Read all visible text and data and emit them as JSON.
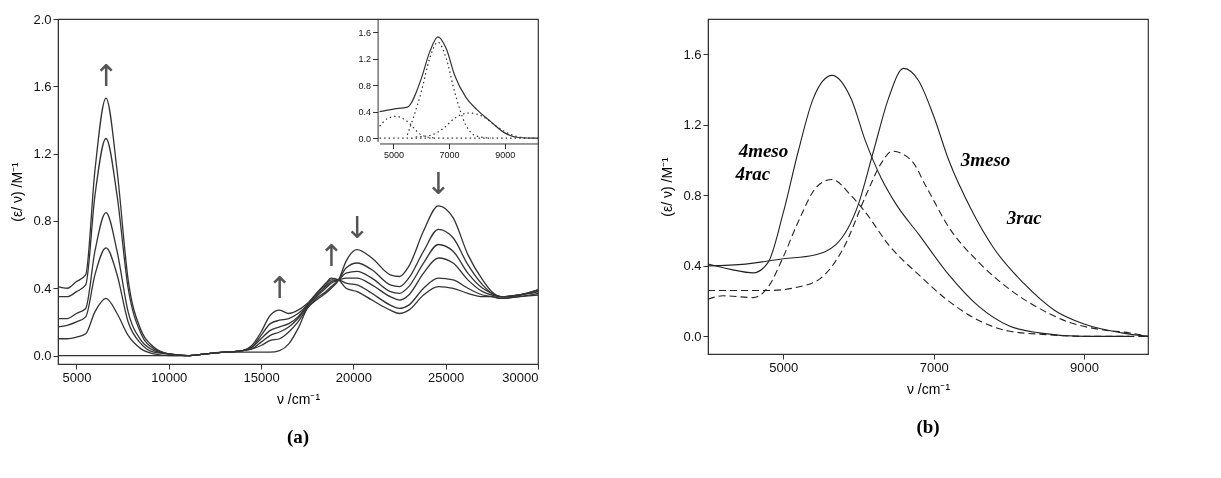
{
  "chart_data": [
    {
      "type": "line",
      "title": "(a)",
      "xlabel": "ν /cm⁻¹",
      "ylabel": "(ε/ ν)  /M⁻¹",
      "x": [
        4000,
        4500,
        5000,
        5500,
        6000,
        6600,
        7200,
        7800,
        8500,
        9200,
        10000,
        11000,
        12000,
        13000,
        14000,
        14500,
        15000,
        15500,
        16000,
        16500,
        17000,
        17500,
        18000,
        18500,
        18800,
        19200,
        19600,
        20200,
        21000,
        22000,
        22500,
        23000,
        23800,
        24600,
        25400,
        26200,
        27000,
        27500,
        28000,
        29000,
        30000
      ],
      "series": [
        {
          "color": "#333333",
          "values": [
            0.41,
            0.4,
            0.44,
            0.48,
            1.1,
            1.53,
            1.1,
            0.45,
            0.15,
            0.05,
            0.01,
            0.0,
            0.01,
            0.02,
            0.03,
            0.06,
            0.14,
            0.24,
            0.27,
            0.25,
            0.27,
            0.31,
            0.37,
            0.43,
            0.46,
            0.45,
            0.4,
            0.38,
            0.33,
            0.27,
            0.25,
            0.27,
            0.36,
            0.41,
            0.4,
            0.37,
            0.35,
            0.35,
            0.34,
            0.35,
            0.36
          ]
        },
        {
          "color": "#333333",
          "values": [
            0.35,
            0.35,
            0.38,
            0.42,
            0.95,
            1.29,
            0.95,
            0.4,
            0.13,
            0.04,
            0.01,
            0.0,
            0.01,
            0.02,
            0.03,
            0.05,
            0.12,
            0.19,
            0.21,
            0.22,
            0.25,
            0.3,
            0.37,
            0.42,
            0.45,
            0.45,
            0.43,
            0.42,
            0.37,
            0.3,
            0.28,
            0.3,
            0.4,
            0.46,
            0.45,
            0.4,
            0.36,
            0.35,
            0.34,
            0.35,
            0.37
          ]
        },
        {
          "color": "#333333",
          "values": [
            0.22,
            0.22,
            0.25,
            0.28,
            0.62,
            0.85,
            0.62,
            0.26,
            0.09,
            0.03,
            0.01,
            0.0,
            0.01,
            0.02,
            0.03,
            0.05,
            0.1,
            0.15,
            0.17,
            0.19,
            0.23,
            0.3,
            0.36,
            0.41,
            0.44,
            0.45,
            0.46,
            0.46,
            0.42,
            0.35,
            0.33,
            0.36,
            0.49,
            0.58,
            0.55,
            0.45,
            0.38,
            0.36,
            0.35,
            0.36,
            0.38
          ]
        },
        {
          "color": "#333333",
          "values": [
            0.17,
            0.18,
            0.2,
            0.23,
            0.48,
            0.64,
            0.48,
            0.2,
            0.07,
            0.02,
            0.01,
            0.0,
            0.01,
            0.02,
            0.03,
            0.04,
            0.08,
            0.12,
            0.14,
            0.17,
            0.22,
            0.29,
            0.35,
            0.4,
            0.43,
            0.45,
            0.49,
            0.5,
            0.46,
            0.38,
            0.37,
            0.41,
            0.55,
            0.66,
            0.62,
            0.49,
            0.4,
            0.37,
            0.35,
            0.36,
            0.38
          ]
        },
        {
          "color": "#333333",
          "values": [
            0.1,
            0.1,
            0.11,
            0.13,
            0.26,
            0.34,
            0.25,
            0.12,
            0.04,
            0.01,
            0.0,
            0.0,
            0.01,
            0.02,
            0.03,
            0.04,
            0.06,
            0.09,
            0.1,
            0.14,
            0.2,
            0.28,
            0.34,
            0.38,
            0.41,
            0.45,
            0.52,
            0.55,
            0.51,
            0.42,
            0.41,
            0.46,
            0.62,
            0.75,
            0.7,
            0.54,
            0.42,
            0.37,
            0.35,
            0.36,
            0.39
          ]
        },
        {
          "color": "#333333",
          "values": [
            0.0,
            0.0,
            0.0,
            0.0,
            0.0,
            0.0,
            0.0,
            0.0,
            0.0,
            0.0,
            0.0,
            0.0,
            0.01,
            0.02,
            0.02,
            0.02,
            0.02,
            0.02,
            0.03,
            0.07,
            0.16,
            0.28,
            0.33,
            0.37,
            0.4,
            0.45,
            0.56,
            0.63,
            0.58,
            0.48,
            0.47,
            0.53,
            0.74,
            0.89,
            0.82,
            0.6,
            0.45,
            0.38,
            0.35,
            0.36,
            0.39
          ]
        }
      ],
      "xlim": [
        4000,
        30000
      ],
      "ylim": [
        -0.05,
        2.0
      ],
      "xticks": [
        5000,
        10000,
        15000,
        20000,
        25000,
        30000
      ],
      "yticks": [
        {
          "value": 0,
          "label": "0.0"
        },
        {
          "value": 0.4,
          "label": "0.4"
        },
        {
          "value": 0.8,
          "label": "0.8"
        },
        {
          "value": 1.2,
          "label": "1.2"
        },
        {
          "value": 1.6,
          "label": "1.6"
        },
        {
          "value": 2.0,
          "label": "2.0"
        }
      ],
      "grid": false,
      "annotations": [
        {
          "text": "↑",
          "x": 6600,
          "y": 1.53
        },
        {
          "text": "↑",
          "x": 16000,
          "y": 0.27
        },
        {
          "text": "↑",
          "x": 18800,
          "y": 0.46
        },
        {
          "text": "↓",
          "x": 20200,
          "y": 0.63
        },
        {
          "text": "↓",
          "x": 24600,
          "y": 0.89
        }
      ]
    },
    {
      "type": "line",
      "series": [
        {
          "color": "#333333",
          "line_style": "solid",
          "x": [
            4500,
            5000,
            5500,
            6000,
            6300,
            6600,
            6900,
            7200,
            7600,
            8000,
            8500,
            9000,
            9500,
            10000,
            10200
          ],
          "values": [
            0.4,
            0.44,
            0.47,
            0.9,
            1.3,
            1.53,
            1.35,
            0.95,
            0.62,
            0.43,
            0.25,
            0.08,
            0.01,
            0.0,
            0.0
          ]
        },
        {
          "color": "#333333",
          "line_style": "dotted",
          "x": [
            4500,
            4800,
            5100,
            5500,
            6000,
            6500
          ],
          "values": [
            0.18,
            0.3,
            0.33,
            0.25,
            0.05,
            0.0
          ]
        },
        {
          "color": "#333333",
          "line_style": "dotted",
          "x": [
            5500,
            6000,
            6300,
            6600,
            6900,
            7200,
            7600,
            8000,
            8500
          ],
          "values": [
            0.05,
            0.7,
            1.2,
            1.45,
            1.2,
            0.7,
            0.2,
            0.03,
            0.0
          ]
        },
        {
          "color": "#333333",
          "line_style": "dotted",
          "x": [
            5800,
            6300,
            6800,
            7200,
            7700,
            8200,
            8700,
            9200,
            9800
          ],
          "values": [
            0.02,
            0.04,
            0.15,
            0.3,
            0.38,
            0.33,
            0.18,
            0.06,
            0.0
          ]
        },
        {
          "color": "#333333",
          "line_style": "dotted",
          "x": [
            4500,
            10200
          ],
          "values": [
            0.0,
            0.0
          ]
        }
      ],
      "xlim": [
        4500,
        10200
      ],
      "ylim": [
        -0.05,
        1.8
      ],
      "xticks": [
        5000,
        7000,
        9000
      ],
      "yticks": [
        {
          "value": 0,
          "label": "0.0"
        },
        {
          "value": 0.4,
          "label": "0.4"
        },
        {
          "value": 0.8,
          "label": "0.8"
        },
        {
          "value": 1.2,
          "label": "1.2"
        },
        {
          "value": 1.6,
          "label": "1.6"
        }
      ],
      "grid": false
    },
    {
      "type": "line",
      "title": "(b)",
      "xlabel": "ν /cm⁻¹",
      "ylabel": "(ε/ ν)  /M⁻¹",
      "series": [
        {
          "color": "#222222",
          "line_style": "solid",
          "x": [
            4000,
            4300,
            4600,
            4800,
            5000,
            5200,
            5400,
            5650,
            5900,
            6100,
            6300,
            6500,
            6800,
            7200,
            7600,
            8000,
            8400,
            9000,
            9600
          ],
          "values": [
            0.41,
            0.38,
            0.36,
            0.42,
            0.7,
            1.05,
            1.35,
            1.48,
            1.35,
            1.1,
            0.9,
            0.75,
            0.58,
            0.35,
            0.17,
            0.06,
            0.02,
            0.0,
            0.0
          ]
        },
        {
          "color": "#222222",
          "line_style": "solid",
          "x": [
            4000,
            4500,
            5000,
            5400,
            5700,
            6000,
            6200,
            6400,
            6600,
            6800,
            7000,
            7200,
            7500,
            7800,
            8200,
            8600,
            9000,
            9500,
            9850
          ],
          "values": [
            0.4,
            0.41,
            0.44,
            0.46,
            0.52,
            0.75,
            1.05,
            1.35,
            1.52,
            1.45,
            1.25,
            1.0,
            0.72,
            0.5,
            0.3,
            0.15,
            0.07,
            0.02,
            0.0
          ]
        },
        {
          "color": "#222222",
          "line_style": "dashed",
          "x": [
            4000,
            4200,
            4600,
            4800,
            5000,
            5200,
            5450,
            5650,
            5900,
            6100,
            6400,
            6800,
            7200,
            7600,
            8000,
            8500,
            9000,
            9850
          ],
          "values": [
            0.21,
            0.23,
            0.22,
            0.28,
            0.45,
            0.65,
            0.85,
            0.89,
            0.8,
            0.7,
            0.52,
            0.35,
            0.2,
            0.09,
            0.03,
            0.01,
            0.0,
            0.0
          ]
        },
        {
          "color": "#222222",
          "line_style": "dashed",
          "x": [
            4000,
            4800,
            5200,
            5500,
            5800,
            6100,
            6300,
            6450,
            6700,
            6900,
            7200,
            7600,
            8000,
            8400,
            8800,
            9200,
            9600,
            9850
          ],
          "values": [
            0.26,
            0.26,
            0.28,
            0.33,
            0.5,
            0.8,
            0.98,
            1.05,
            1.0,
            0.85,
            0.62,
            0.42,
            0.27,
            0.16,
            0.08,
            0.04,
            0.02,
            0.0
          ]
        }
      ],
      "xlim": [
        4000,
        9850
      ],
      "ylim": [
        -0.1,
        1.8
      ],
      "xticks": [
        5000,
        7000,
        9000
      ],
      "yticks": [
        {
          "value": 0,
          "label": "0.0"
        },
        {
          "value": 0.4,
          "label": "0.4"
        },
        {
          "value": 0.8,
          "label": "0.8"
        },
        {
          "value": 1.2,
          "label": "1.2"
        },
        {
          "value": 1.6,
          "label": "1.6"
        }
      ],
      "grid": false,
      "annotations": [
        {
          "text": "4meso",
          "x": 5200,
          "y": 1.05
        },
        {
          "text": "3meso",
          "x": 7200,
          "y": 1.0
        },
        {
          "text": "4rac",
          "x": 5200,
          "y": 0.65
        },
        {
          "text": "3rac",
          "x": 7600,
          "y": 0.42
        }
      ]
    }
  ]
}
